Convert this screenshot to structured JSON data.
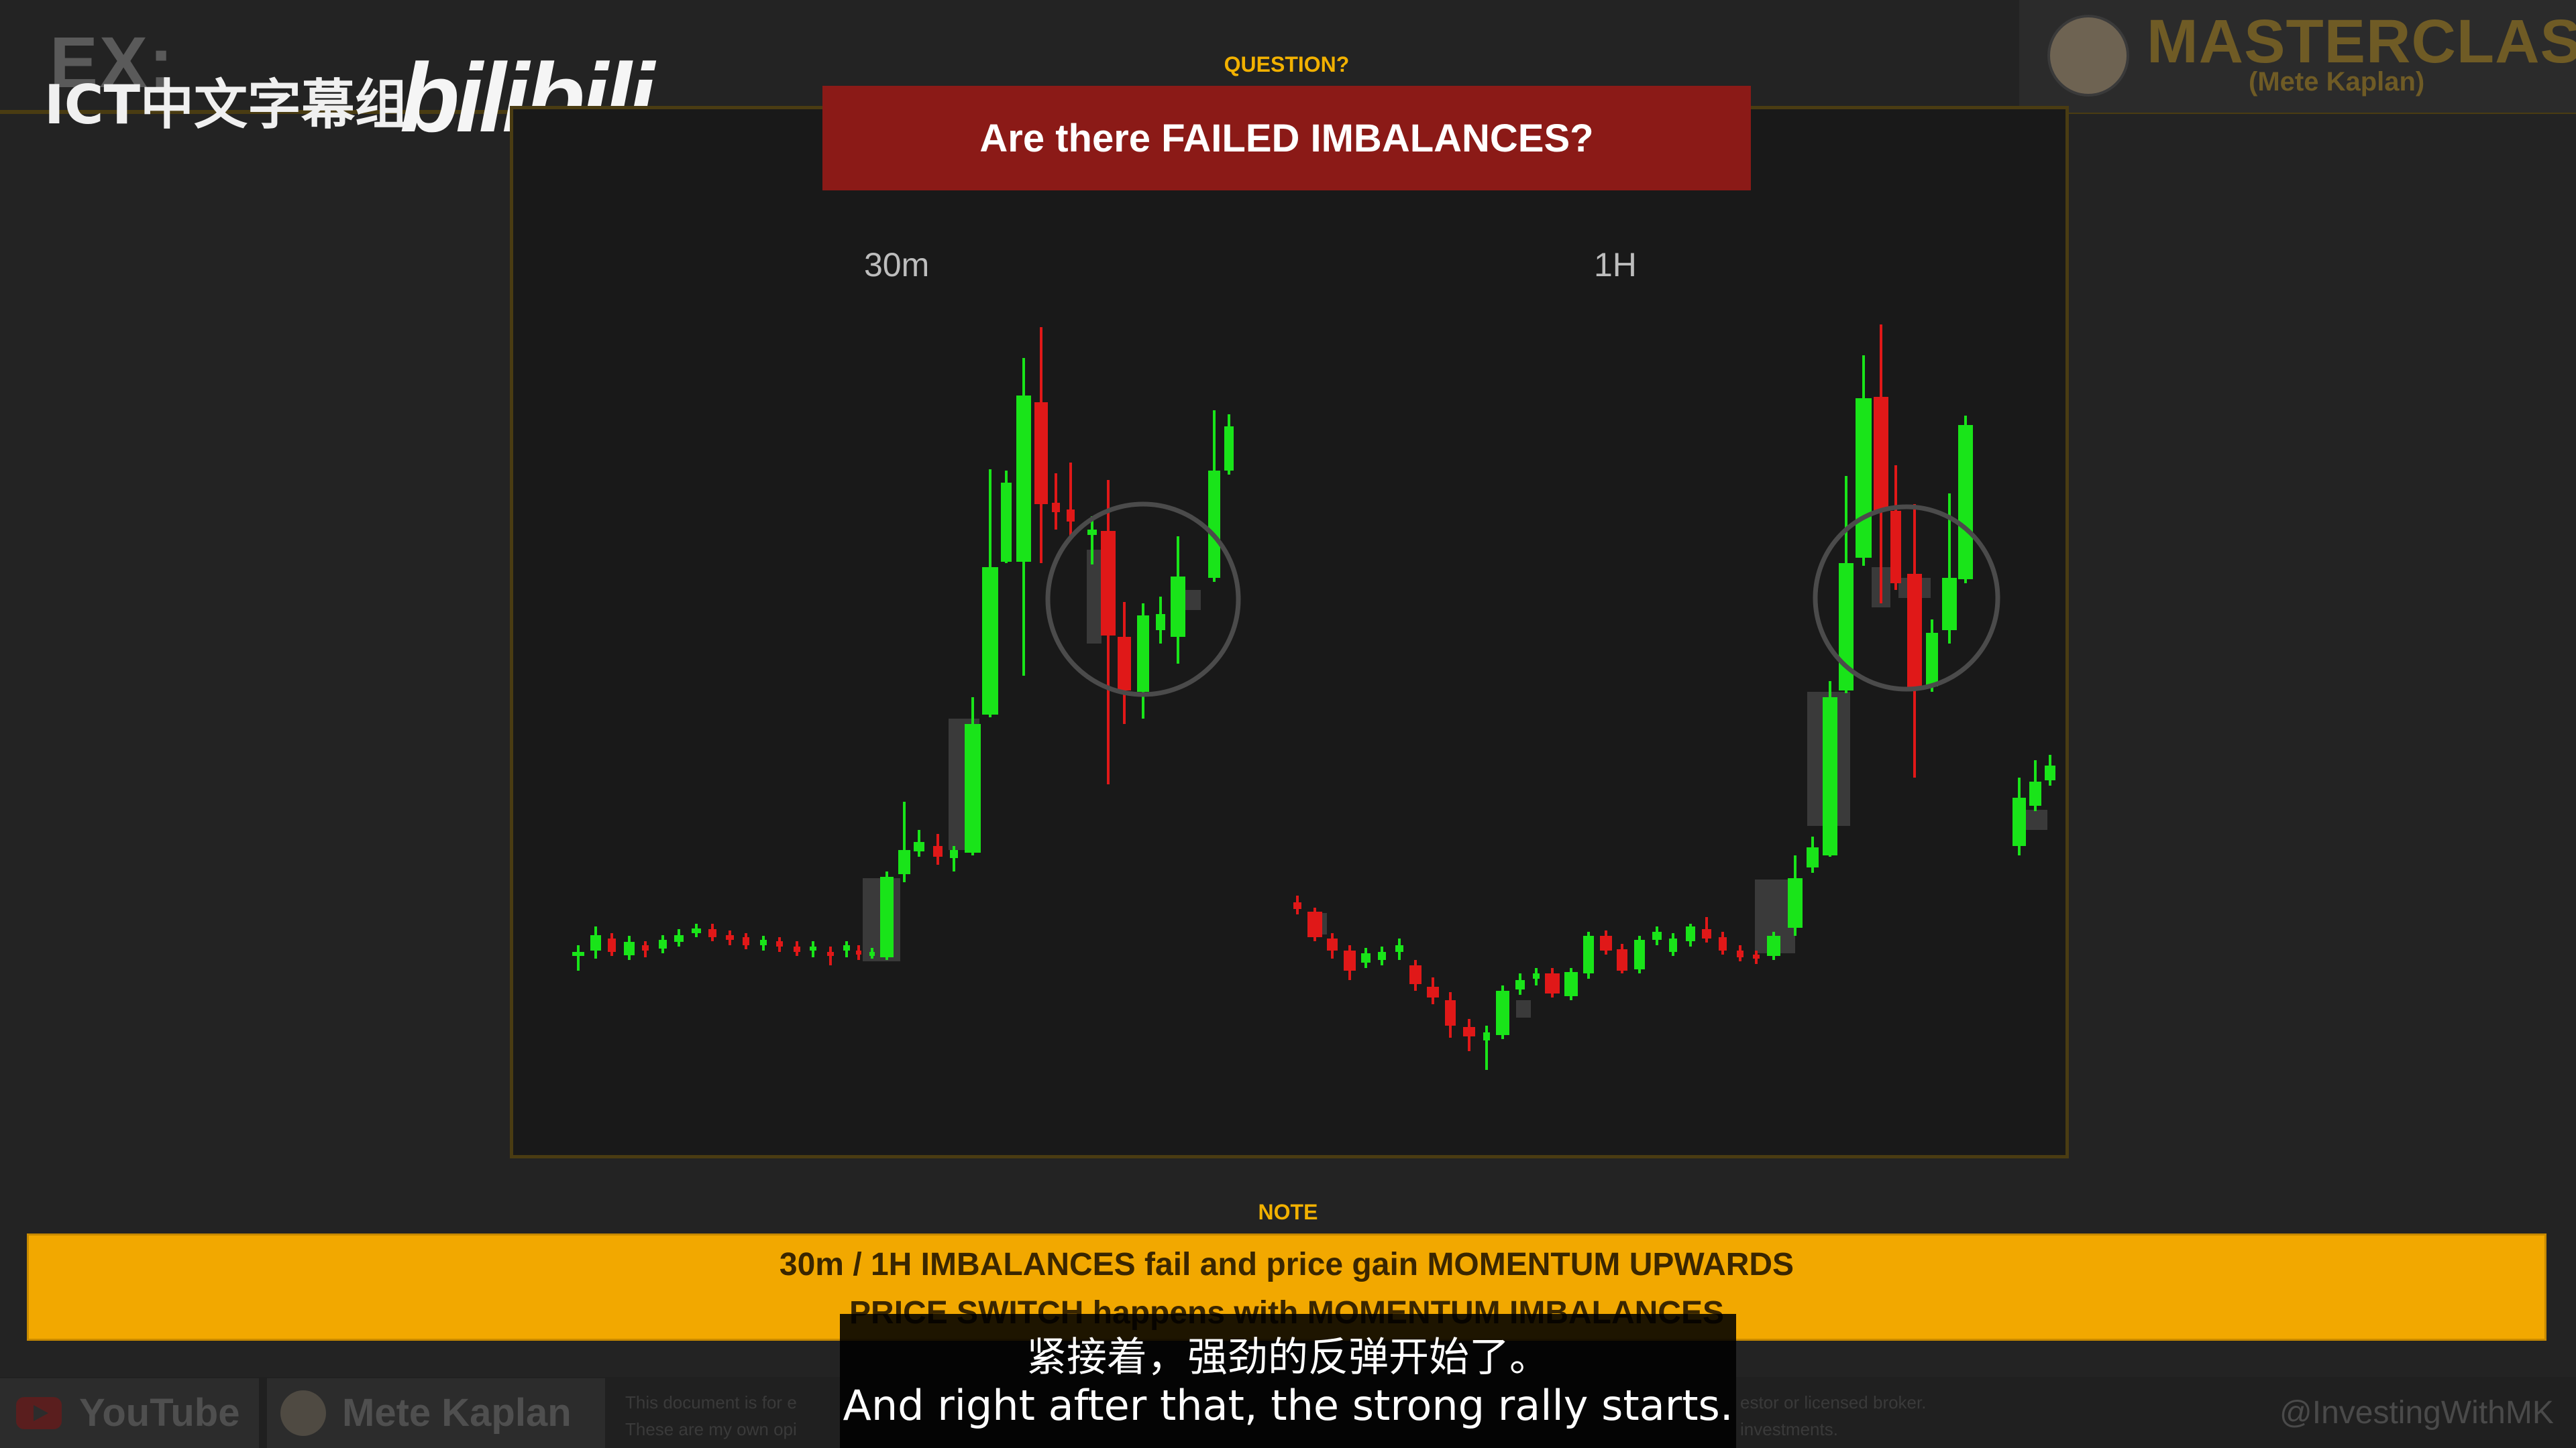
{
  "watermark": {
    "ex": "EX:",
    "group": "ICT中文字幕组",
    "platform": "bilibili"
  },
  "masterclass": {
    "title": "MASTERCLASS",
    "subtitle": "(Mete Kaplan)"
  },
  "question": {
    "label": "QUESTION?",
    "title": "Are there FAILED IMBALANCES?"
  },
  "charts": {
    "left_label": "30m",
    "right_label": "1H",
    "colors": {
      "up": "#19e419",
      "down": "#e01818",
      "imbalance": "#3a3a3a",
      "circle": "#4b4b4b"
    }
  },
  "note": {
    "label": "NOTE",
    "line1": "30m / 1H IMBALANCES fail and price gain MOMENTUM UPWARDS",
    "line2": "PRICE SWITCH happens with MOMENTUM IMBALANCES"
  },
  "footer": {
    "youtube": "YouTube",
    "author": "Mete Kaplan",
    "disclaimer_left_1": "This document is for e",
    "disclaimer_left_2": "These are my own opi",
    "disclaimer_right_1": "estor or licensed broker.",
    "disclaimer_right_2": "investments.",
    "handle": "@InvestingWithMK"
  },
  "subtitles": {
    "cn": "紧接着，强劲的反弹开始了。",
    "en": "And right after that, the strong rally starts."
  }
}
